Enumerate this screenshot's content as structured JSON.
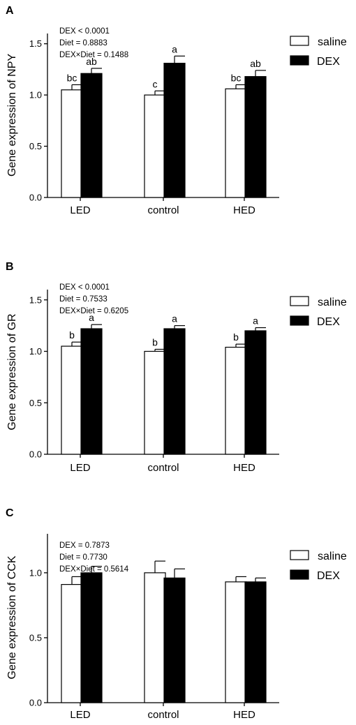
{
  "chart_data": [
    {
      "type": "bar",
      "panel_label": "A",
      "categories": [
        "LED",
        "control",
        "HED"
      ],
      "ylabel": "Gene expression of NPY",
      "ylim": [
        0,
        1.6
      ],
      "yticks": [
        "0.0",
        "0.5",
        "1.0",
        "1.5"
      ],
      "stats": [
        "DEX < 0.0001",
        "Diet = 0.8883",
        "DEX×Diet = 0.1488"
      ],
      "series": [
        {
          "name": "saline",
          "fill": "#ffffff",
          "values": [
            1.05,
            1.0,
            1.06
          ],
          "errors": [
            0.05,
            0.04,
            0.04
          ],
          "letters": [
            "bc",
            "c",
            "bc"
          ]
        },
        {
          "name": "DEX",
          "fill": "#000000",
          "values": [
            1.21,
            1.31,
            1.18
          ],
          "errors": [
            0.05,
            0.07,
            0.06
          ],
          "letters": [
            "ab",
            "a",
            "ab"
          ]
        }
      ],
      "legend": "top-right"
    },
    {
      "type": "bar",
      "panel_label": "B",
      "categories": [
        "LED",
        "control",
        "HED"
      ],
      "ylabel": "Gene expression of GR",
      "ylim": [
        0,
        1.6
      ],
      "yticks": [
        "0.0",
        "0.5",
        "1.0",
        "1.5"
      ],
      "stats": [
        "DEX < 0.0001",
        "Diet = 0.7533",
        "DEX×Diet = 0.6205"
      ],
      "series": [
        {
          "name": "saline",
          "fill": "#ffffff",
          "values": [
            1.05,
            1.0,
            1.04
          ],
          "errors": [
            0.04,
            0.02,
            0.03
          ],
          "letters": [
            "b",
            "b",
            "b"
          ]
        },
        {
          "name": "DEX",
          "fill": "#000000",
          "values": [
            1.22,
            1.22,
            1.2
          ],
          "errors": [
            0.04,
            0.03,
            0.03
          ],
          "letters": [
            "a",
            "a",
            "a"
          ]
        }
      ],
      "legend": "top-right"
    },
    {
      "type": "bar",
      "panel_label": "C",
      "categories": [
        "LED",
        "control",
        "HED"
      ],
      "ylabel": "Gene expression of CCK",
      "ylim": [
        0,
        1.3
      ],
      "yticks": [
        "0.0",
        "0.5",
        "1.0"
      ],
      "stats": [
        "DEX = 0.7873",
        "Diet = 0.7730",
        "DEX×Diet = 0.5614"
      ],
      "series": [
        {
          "name": "saline",
          "fill": "#ffffff",
          "values": [
            0.91,
            1.0,
            0.93
          ],
          "errors": [
            0.06,
            0.09,
            0.04
          ],
          "letters": [
            "",
            "",
            ""
          ]
        },
        {
          "name": "DEX",
          "fill": "#000000",
          "values": [
            1.0,
            0.96,
            0.93
          ],
          "errors": [
            0.05,
            0.07,
            0.03
          ],
          "letters": [
            "",
            "",
            ""
          ]
        }
      ],
      "legend": "top-right"
    }
  ]
}
